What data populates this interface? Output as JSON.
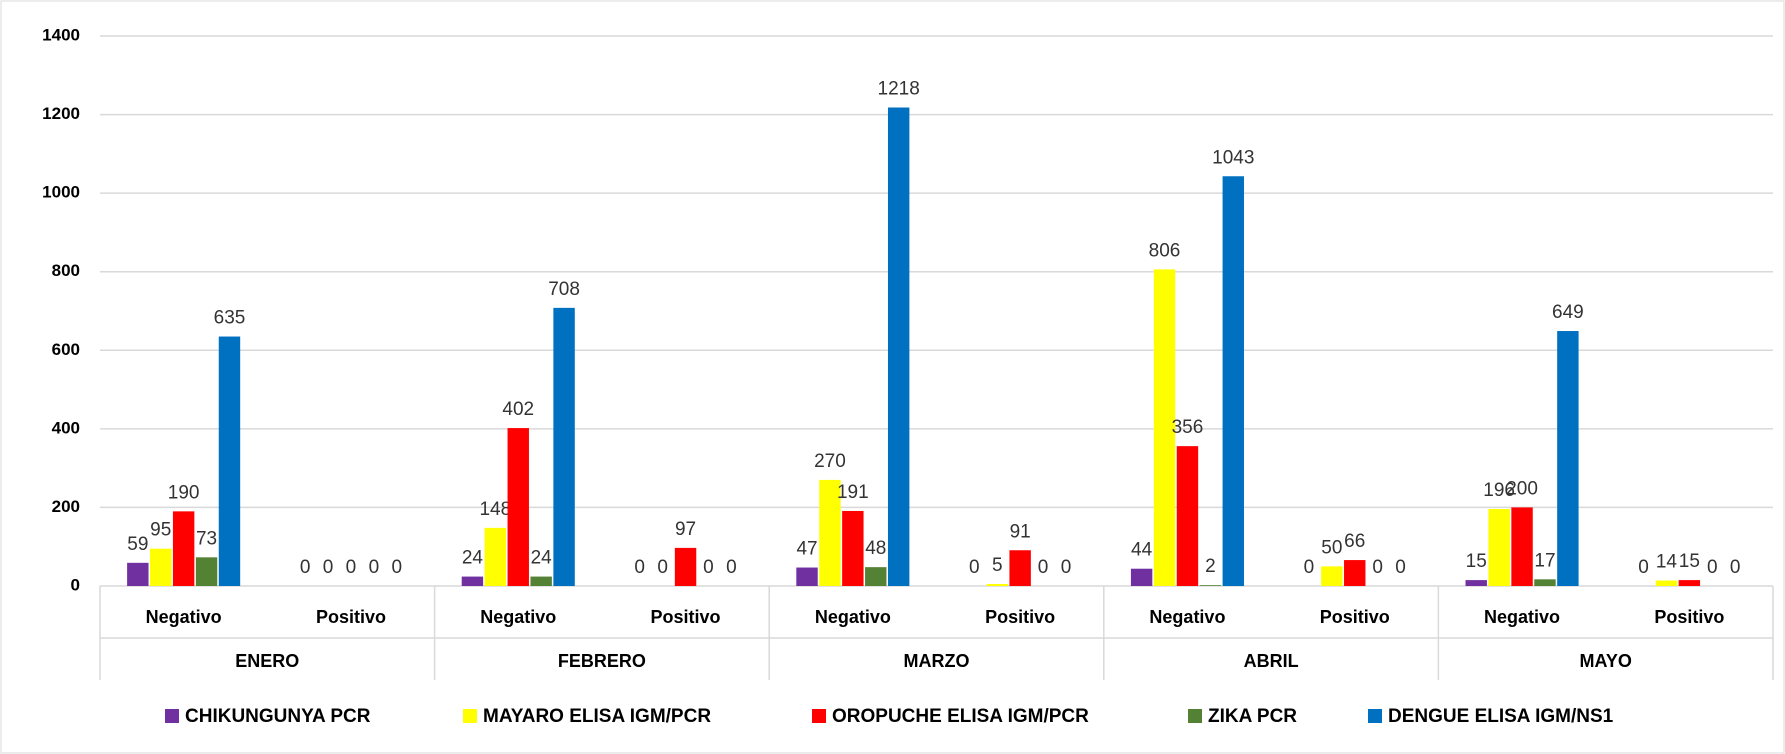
{
  "chart_data": {
    "type": "bar",
    "groups": [
      "ENERO",
      "FEBRERO",
      "MARZO",
      "ABRIL",
      "MAYO"
    ],
    "categories": [
      "Negativo",
      "Positivo",
      "Negativo",
      "Positivo",
      "Negativo",
      "Positivo",
      "Negativo",
      "Positivo",
      "Negativo",
      "Positivo"
    ],
    "series": [
      {
        "name": "CHIKUNGUNYA PCR",
        "color": "#7030a0",
        "values": [
          59,
          0,
          24,
          0,
          47,
          0,
          44,
          0,
          15,
          0
        ]
      },
      {
        "name": "MAYARO ELISA IGM/PCR",
        "color": "#ffff00",
        "values": [
          95,
          0,
          148,
          0,
          270,
          5,
          806,
          50,
          196,
          14
        ]
      },
      {
        "name": "OROPUCHE ELISA IGM/PCR",
        "color": "#ff0000",
        "values": [
          190,
          0,
          402,
          97,
          191,
          91,
          356,
          66,
          200,
          15
        ]
      },
      {
        "name": "ZIKA PCR",
        "color": "#548235",
        "values": [
          73,
          0,
          24,
          0,
          48,
          0,
          2,
          0,
          17,
          0
        ]
      },
      {
        "name": "DENGUE  ELISA IGM/NS1",
        "color": "#0070c0",
        "values": [
          635,
          0,
          708,
          0,
          1218,
          0,
          1043,
          0,
          649,
          0
        ]
      }
    ],
    "ylim": [
      0,
      1400
    ],
    "yticks": [
      0,
      200,
      400,
      600,
      800,
      1000,
      1200,
      1400
    ],
    "grid": true
  }
}
